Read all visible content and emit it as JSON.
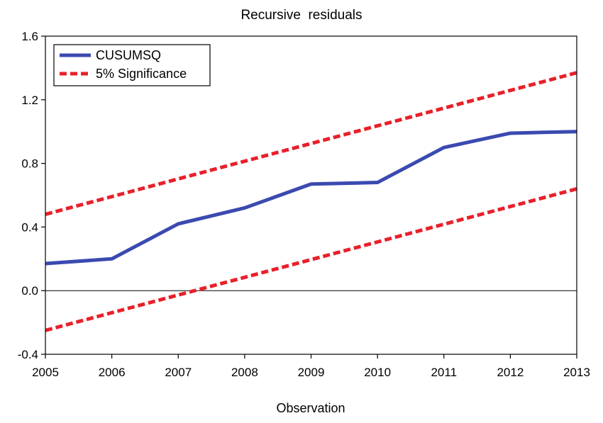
{
  "chart_data": {
    "type": "line",
    "title": "Recursive  residuals",
    "xlabel": "Observation",
    "ylabel": "",
    "x": [
      2005,
      2006,
      2007,
      2008,
      2009,
      2010,
      2011,
      2012,
      2013
    ],
    "xticks": [
      "2005",
      "2006",
      "2007",
      "2008",
      "2009",
      "2010",
      "2011",
      "2012",
      "2013"
    ],
    "yticks": [
      "-0.4",
      "0.0",
      "0.4",
      "0.8",
      "1.2",
      "1.6"
    ],
    "ylim": [
      -0.4,
      1.6
    ],
    "grid": false,
    "zero_line": true,
    "legend_position": "top-left",
    "series": [
      {
        "name": "CUSUMSQ",
        "color": "#3b4ab0",
        "style": "solid",
        "values": [
          0.17,
          0.2,
          0.42,
          0.52,
          0.67,
          0.68,
          0.9,
          0.99,
          1.0
        ]
      },
      {
        "name": "5% Significance",
        "color": "#e8202a",
        "style": "dashed",
        "x": [
          2005,
          2013
        ],
        "values": [
          0.48,
          1.37
        ]
      },
      {
        "name": "",
        "color": "#e8202a",
        "style": "dashed",
        "legend": false,
        "x": [
          2005,
          2013
        ],
        "values": [
          -0.25,
          0.64
        ]
      }
    ]
  }
}
